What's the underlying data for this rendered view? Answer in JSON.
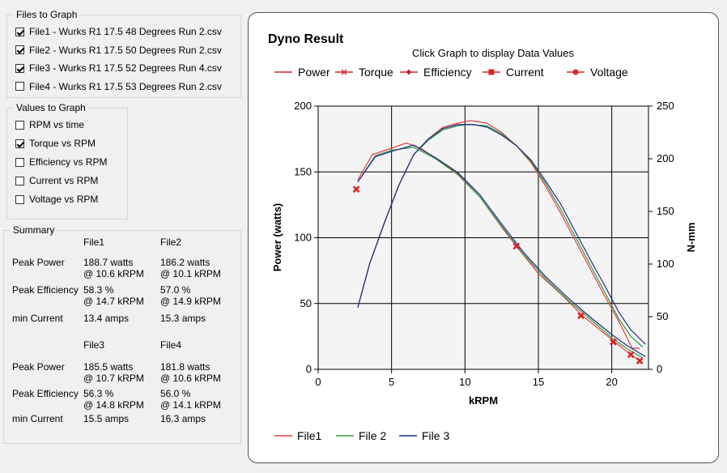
{
  "files_group": {
    "title": "Files to Graph",
    "items": [
      {
        "label": "File1 - Wurks R1 17.5 48 Degrees Run 2.csv",
        "checked": true
      },
      {
        "label": "File2 - Wurks R1 17.5 50 Degrees Run 2.csv",
        "checked": true
      },
      {
        "label": "File3 - Wurks R1 17.5 52 Degrees Run 4.csv",
        "checked": true
      },
      {
        "label": "File4 - Wurks R1 17.5 53 Degrees Run 2.csv",
        "checked": false
      }
    ]
  },
  "values_group": {
    "title": "Values to Graph",
    "items": [
      {
        "label": "RPM vs time",
        "checked": false
      },
      {
        "label": "Torque vs RPM",
        "checked": true
      },
      {
        "label": "Efficiency vs RPM",
        "checked": false
      },
      {
        "label": "Current vs RPM",
        "checked": false
      },
      {
        "label": "Voltage vs RPM",
        "checked": false
      }
    ]
  },
  "summary": {
    "title": "Summary",
    "block1": {
      "col_headers": [
        "File1",
        "File2"
      ],
      "rows": [
        {
          "label": "Peak Power",
          "v1": [
            "188.7 watts",
            "@ 10.6 kRPM"
          ],
          "v2": [
            "186.2 watts",
            "@ 10.1 kRPM"
          ]
        },
        {
          "label": "Peak Efficiency",
          "v1": [
            "58.3 %",
            "@ 14.7 kRPM"
          ],
          "v2": [
            "57.0 %",
            "@ 14.9 kRPM"
          ]
        },
        {
          "label": "min Current",
          "v1": [
            "13.4 amps"
          ],
          "v2": [
            "15.3 amps"
          ]
        }
      ]
    },
    "block2": {
      "col_headers": [
        "File3",
        "File4"
      ],
      "rows": [
        {
          "label": "Peak Power",
          "v1": [
            "185.5 watts",
            "@ 10.7 kRPM"
          ],
          "v2": [
            "181.8 watts",
            "@ 10.6 kRPM"
          ]
        },
        {
          "label": "Peak Efficiency",
          "v1": [
            "56.3 %",
            "@ 14.8 kRPM"
          ],
          "v2": [
            "56.0 %",
            "@ 14.1 kRPM"
          ]
        },
        {
          "label": "min Current",
          "v1": [
            "15.5 amps"
          ],
          "v2": [
            "16.3 amps"
          ]
        }
      ]
    }
  },
  "chart_data": {
    "type": "line",
    "title": "Dyno Result",
    "subtitle": "Click Graph to display Data Values",
    "top_legend": [
      {
        "name": "Power",
        "marker": "none"
      },
      {
        "name": "Torque",
        "marker": "x"
      },
      {
        "name": "Efficiency",
        "marker": "diamond"
      },
      {
        "name": "Current",
        "marker": "square"
      },
      {
        "name": "Voltage",
        "marker": "circle"
      }
    ],
    "legend_color": "#d62728",
    "xlabel": "kRPM",
    "ylabel": "Power (watts)",
    "y2label": "N-mm",
    "xlim": [
      0,
      22.5
    ],
    "ylim": [
      0,
      200
    ],
    "y2lim": [
      0,
      250
    ],
    "xticks": [
      0,
      5,
      10,
      15,
      20
    ],
    "yticks": [
      0,
      50,
      100,
      150,
      200
    ],
    "y2ticks": [
      0,
      50,
      100,
      150,
      200,
      250
    ],
    "grid": true,
    "bottom_legend": [
      "File1",
      "File 2",
      "File 3"
    ],
    "power_series": [
      {
        "name": "File1",
        "color": "#e8403a",
        "x": [
          2.7,
          3.5,
          4.5,
          5.5,
          6.5,
          7.5,
          8.5,
          9.5,
          10.4,
          11.5,
          12.5,
          13.5,
          14.5,
          15.5,
          16.5,
          17.5,
          18.5,
          19.5,
          20.5,
          21.4,
          21.9
        ],
        "y": [
          47,
          80,
          111,
          140,
          163,
          175,
          184,
          187,
          189,
          187,
          180,
          170,
          157,
          139,
          119,
          98,
          77,
          56,
          36,
          16,
          16
        ]
      },
      {
        "name": "File 2",
        "color": "#2e9a3a",
        "x": [
          2.7,
          3.5,
          4.5,
          5.5,
          6.5,
          7.5,
          8.5,
          9.5,
          10.2,
          11.5,
          12.5,
          13.5,
          14.5,
          15.5,
          16.5,
          17.5,
          18.5,
          19.5,
          20.5,
          21.3,
          22.1
        ],
        "y": [
          47,
          80,
          111,
          140,
          163,
          174,
          182,
          185,
          186,
          185,
          179,
          170,
          158,
          141,
          122,
          101,
          80,
          59,
          38,
          25,
          17
        ]
      },
      {
        "name": "File 3",
        "color": "#1d2a8c",
        "x": [
          2.7,
          3.5,
          4.5,
          5.5,
          6.5,
          7.5,
          8.5,
          9.5,
          10.6,
          11.5,
          12.5,
          13.5,
          14.5,
          15.5,
          16.5,
          17.5,
          18.5,
          19.5,
          20.5,
          21.3,
          22.3
        ],
        "y": [
          47,
          80,
          111,
          140,
          163,
          175,
          183,
          186,
          186,
          184,
          178,
          170,
          159,
          143,
          126,
          105,
          84,
          64,
          43,
          30,
          19
        ]
      }
    ],
    "torque_series": [
      {
        "name": "File1",
        "color": "#e8403a",
        "x": [
          2.7,
          3.7,
          5.0,
          6.0,
          7.0,
          8.0,
          9.5,
          11.0,
          12.5,
          13.5,
          15.0,
          16.5,
          18.0,
          19.5,
          20.2,
          21.3,
          21.9
        ],
        "y": [
          180,
          204,
          210,
          215,
          210,
          200,
          186,
          164,
          135,
          117,
          91,
          72,
          51,
          34,
          26,
          14,
          8
        ]
      },
      {
        "name": "File 2",
        "color": "#2e9a3a",
        "x": [
          2.7,
          3.9,
          5.0,
          6.5,
          8.0,
          9.5,
          11.0,
          12.5,
          14.0,
          15.5,
          17.0,
          18.5,
          20.0,
          21.0,
          22.1
        ],
        "y": [
          178,
          203,
          208,
          211,
          200,
          185,
          164,
          136,
          109,
          86,
          66,
          48,
          30,
          20,
          11
        ]
      },
      {
        "name": "File 3",
        "color": "#1d2a8c",
        "x": [
          2.7,
          3.9,
          5.0,
          6.5,
          8.0,
          9.5,
          11.0,
          12.5,
          14.0,
          15.5,
          17.0,
          18.5,
          20.0,
          21.0,
          22.3
        ],
        "y": [
          178,
          202,
          207,
          213,
          201,
          187,
          166,
          138,
          111,
          88,
          68,
          50,
          33,
          23,
          12
        ]
      }
    ],
    "torque_markers": {
      "color": "#d62728",
      "x": [
        2.6,
        13.5,
        17.9,
        20.1,
        21.3,
        21.9
      ],
      "y": [
        171,
        117,
        51,
        26,
        14,
        8
      ]
    }
  }
}
